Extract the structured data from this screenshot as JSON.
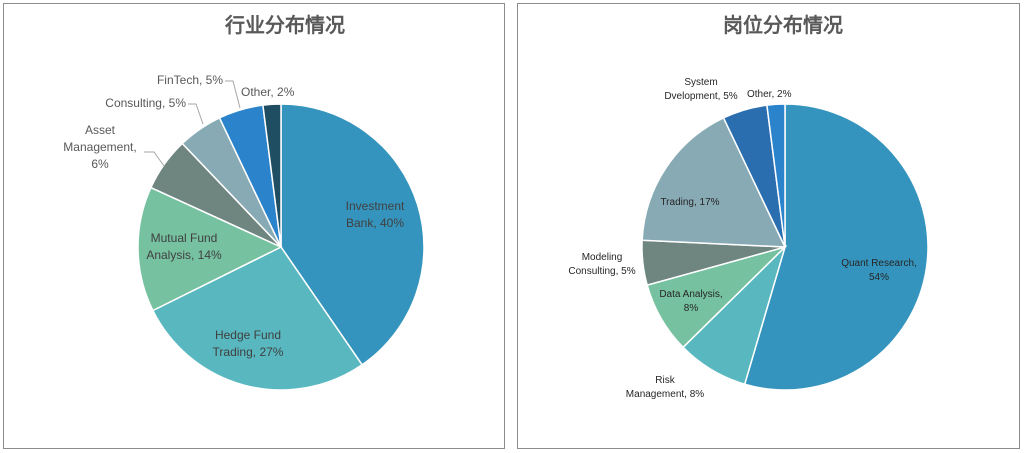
{
  "chart_data": [
    {
      "type": "pie",
      "title": "行业分布情况",
      "categories": [
        "Investment Bank",
        "Hedge Fund Trading",
        "Mutual Fund Analysis",
        "Asset Management",
        "Consulting",
        "FinTech",
        "Other"
      ],
      "values": [
        40,
        27,
        14,
        6,
        5,
        5,
        2
      ],
      "colors": [
        "#3594BD",
        "#58B7BF",
        "#76C1A0",
        "#6E8580",
        "#88AAB5",
        "#2B84CB",
        "#1F4E63"
      ],
      "labels": [
        "Investment Bank, 40%",
        "Hedge Fund Trading, 27%",
        "Mutual Fund Analysis, 14%",
        "Asset Management, 6%",
        "Consulting, 5%",
        "FinTech, 5%",
        "Other, 2%"
      ]
    },
    {
      "type": "pie",
      "title": "岗位分布情况",
      "categories": [
        "Quant Research",
        "Risk Management",
        "Data Analysis",
        "Modeling Consulting",
        "Trading",
        "System Dvelopment",
        "Other"
      ],
      "values": [
        54,
        8,
        8,
        5,
        17,
        5,
        2
      ],
      "colors": [
        "#3594BD",
        "#58B7BF",
        "#76C1A0",
        "#6E8580",
        "#88AAB5",
        "#2B6EAF",
        "#2B84CB"
      ],
      "labels": [
        "Quant Research, 54%",
        "Risk Management, 8%",
        "Data Analysis, 8%",
        "Modeling Consulting, 5%",
        "Trading, 17%",
        "System Dvelopment, 5%",
        "Other, 2%"
      ]
    }
  ]
}
